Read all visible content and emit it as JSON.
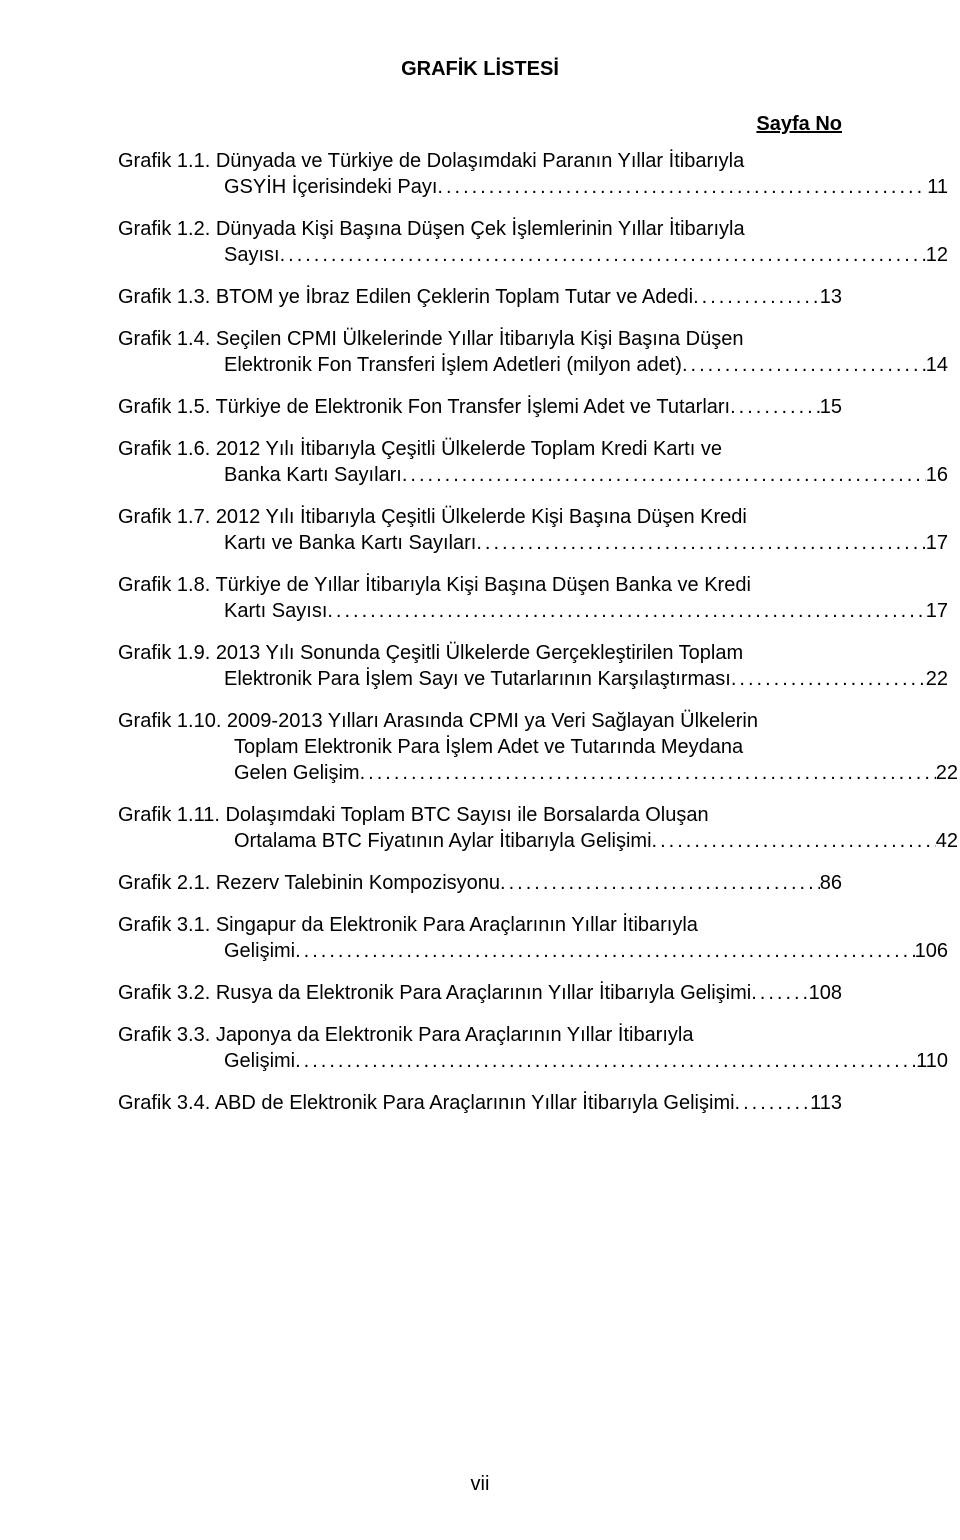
{
  "title": "GRAFİK LİSTESİ",
  "page_no_label": "Sayfa No",
  "footer": "vii",
  "entries": [
    {
      "lines": [
        "Grafik 1.1. Dünyada ve Türkiye de Dolaşımdaki Paranın Yıllar İtibarıyla"
      ],
      "last": "GSYİH İçerisindeki Payı",
      "page": "11",
      "indent": true
    },
    {
      "lines": [
        "Grafik 1.2. Dünyada Kişi Başına Düşen Çek İşlemlerinin Yıllar İtibarıyla"
      ],
      "last": "Sayısı",
      "page": "12",
      "indent": true
    },
    {
      "lines": [],
      "last": "Grafik 1.3. BTOM ye İbraz Edilen Çeklerin Toplam Tutar ve Adedi",
      "page": "13",
      "indent": false
    },
    {
      "lines": [
        "Grafik 1.4. Seçilen CPMI Ülkelerinde Yıllar İtibarıyla Kişi Başına Düşen"
      ],
      "last": "Elektronik Fon Transferi İşlem Adetleri (milyon adet)",
      "page": "14",
      "indent": true
    },
    {
      "lines": [],
      "last": "Grafik 1.5. Türkiye de Elektronik Fon Transfer İşlemi Adet ve Tutarları",
      "page": "15",
      "indent": false
    },
    {
      "lines": [
        "Grafik 1.6. 2012 Yılı İtibarıyla Çeşitli Ülkelerde Toplam Kredi Kartı ve"
      ],
      "last": "Banka Kartı Sayıları",
      "page": "16",
      "indent": true
    },
    {
      "lines": [
        "Grafik 1.7. 2012 Yılı İtibarıyla Çeşitli Ülkelerde Kişi Başına Düşen Kredi"
      ],
      "last": "Kartı ve Banka Kartı Sayıları",
      "page": "17",
      "indent": true
    },
    {
      "lines": [
        "Grafik 1.8. Türkiye de Yıllar İtibarıyla Kişi Başına Düşen Banka ve Kredi"
      ],
      "last": "Kartı Sayısı",
      "page": " 17",
      "indent": true
    },
    {
      "lines": [
        "Grafik 1.9. 2013 Yılı Sonunda Çeşitli Ülkelerde Gerçekleştirilen Toplam"
      ],
      "last": "Elektronik Para İşlem Sayı ve Tutarlarının Karşılaştırması",
      "page": "22",
      "indent": true
    },
    {
      "lines": [
        "Grafik 1.10. 2009-2013 Yılları Arasında CPMI ya Veri Sağlayan Ülkelerin",
        "Toplam Elektronik Para İşlem Adet ve Tutarında Meydana"
      ],
      "last": "Gelen Gelişim",
      "page": "22",
      "indent": true,
      "indent2": true
    },
    {
      "lines": [
        "Grafik 1.11. Dolaşımdaki Toplam BTC Sayısı ile Borsalarda Oluşan"
      ],
      "last": "Ortalama BTC Fiyatının Aylar İtibarıyla Gelişimi",
      "page": "42",
      "indent": true,
      "indent2": true
    },
    {
      "lines": [],
      "last": "Grafik 2.1. Rezerv Talebinin Kompozisyonu",
      "page": "86",
      "indent": false
    },
    {
      "lines": [
        "Grafik 3.1. Singapur da Elektronik Para Araçlarının Yıllar İtibarıyla"
      ],
      "last": "Gelişimi",
      "page": "106",
      "indent": true
    },
    {
      "lines": [],
      "last": "Grafik 3.2. Rusya da Elektronik Para Araçlarının Yıllar İtibarıyla Gelişimi",
      "page": "108",
      "indent": false
    },
    {
      "lines": [
        "Grafik 3.3. Japonya da Elektronik Para Araçlarının Yıllar İtibarıyla"
      ],
      "last": "Gelişimi",
      "page": "110",
      "indent": true
    },
    {
      "lines": [],
      "last": "Grafik 3.4. ABD de Elektronik Para Araçlarının Yıllar İtibarıyla Gelişimi",
      "page": "113",
      "indent": false
    }
  ]
}
